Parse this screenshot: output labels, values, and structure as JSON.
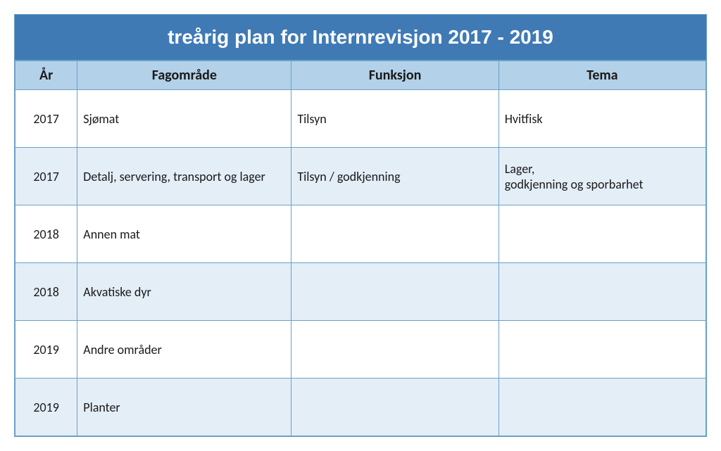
{
  "table": {
    "type": "table",
    "title": "treårig plan for Internrevisjon 2017 - 2019",
    "title_bg": "#3f7ab5",
    "title_color": "#ffffff",
    "title_fontsize": 28,
    "header_bg": "#b3d1e8",
    "header_fontsize": 20,
    "cell_fontsize": 18,
    "text_color": "#1a1a1a",
    "border_color": "#6aa0c8",
    "row_bg": "#ffffff",
    "row_alt_bg": "#e4eef7",
    "columns": [
      {
        "label": "År",
        "width": "9%",
        "align": "center"
      },
      {
        "label": "Fagområde",
        "width": "31%",
        "align": "left"
      },
      {
        "label": "Funksjon",
        "width": "30%",
        "align": "left"
      },
      {
        "label": "Tema",
        "width": "30%",
        "align": "left"
      }
    ],
    "rows": [
      {
        "year": "2017",
        "fagomrade": "Sjømat",
        "funksjon": "Tilsyn",
        "tema": "Hvitfisk",
        "alt": false
      },
      {
        "year": "2017",
        "fagomrade": "Detalj, servering, transport og lager",
        "funksjon": "Tilsyn / godkjenning",
        "tema": "Lager,\ngodkjenning og sporbarhet",
        "alt": true
      },
      {
        "year": "2018",
        "fagomrade": "Annen mat",
        "funksjon": "",
        "tema": "",
        "alt": false
      },
      {
        "year": "2018",
        "fagomrade": "Akvatiske dyr",
        "funksjon": "",
        "tema": "",
        "alt": true
      },
      {
        "year": "2019",
        "fagomrade": "Andre områder",
        "funksjon": "",
        "tema": "",
        "alt": false
      },
      {
        "year": "2019",
        "fagomrade": "Planter",
        "funksjon": "",
        "tema": "",
        "alt": true
      }
    ]
  }
}
